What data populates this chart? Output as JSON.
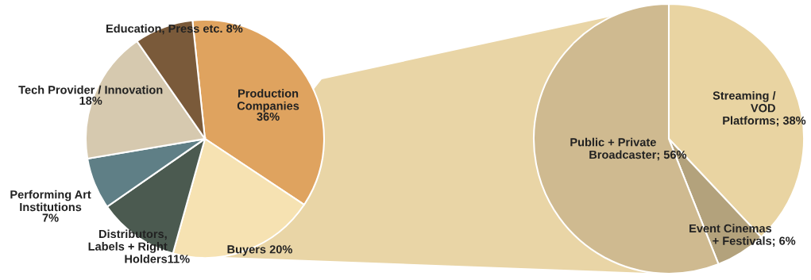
{
  "chart_data": [
    {
      "type": "pie",
      "categories": [
        "Production Companies",
        "Buyers",
        "Distributors, Labels + Right Holders",
        "Performing Art Institutions",
        "Tech Provider / Innovation",
        "Education, Press etc."
      ],
      "values": [
        36,
        20,
        11,
        7,
        18,
        8
      ],
      "colors": [
        "#dfa35f",
        "#f6e2b2",
        "#4b5a50",
        "#5f7f86",
        "#d6c9af",
        "#7a5a3a"
      ],
      "value_labels": [
        "36%",
        "20%",
        "11%",
        "7%",
        "18%",
        "8%"
      ]
    },
    {
      "type": "pie",
      "categories": [
        "Streaming / VOD Platforms",
        "Event Cinemas + Festivals",
        "Public + Private Broadcaster"
      ],
      "values": [
        38,
        6,
        56
      ],
      "colors": [
        "#e9d4a2",
        "#b3a27c",
        "#cfba90"
      ],
      "value_labels": [
        "; 38%",
        "; 6%",
        "; 56%"
      ]
    }
  ]
}
